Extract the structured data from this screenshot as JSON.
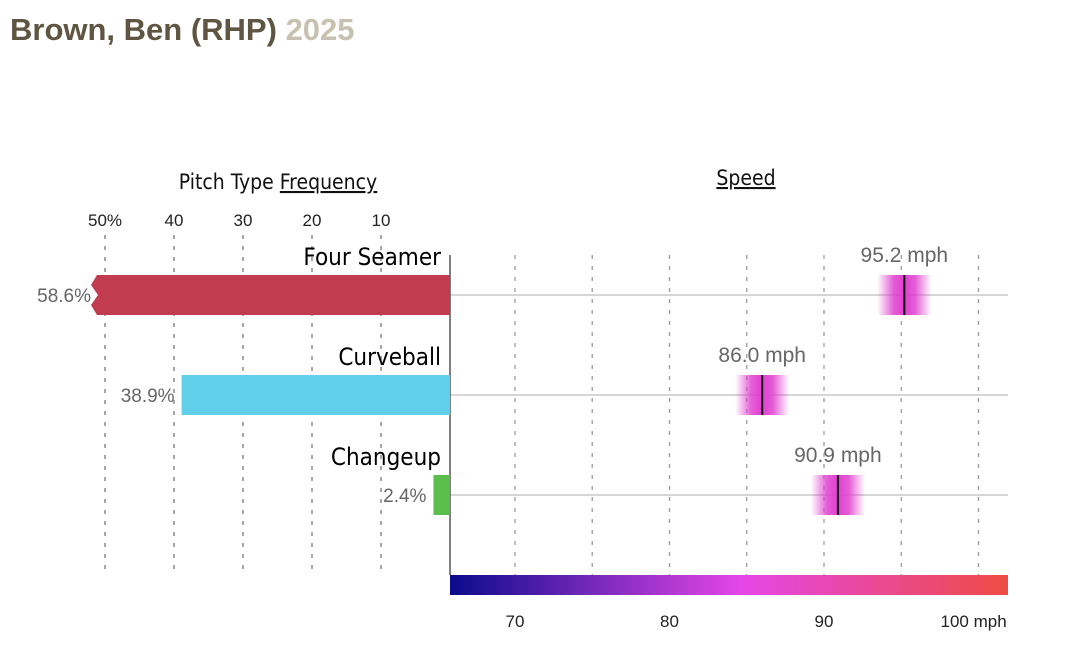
{
  "header": {
    "name": "Brown, Ben (RHP)",
    "year": "2025"
  },
  "chart_data": {
    "type": "bar",
    "titles": {
      "frequency_prefix": "Pitch Type ",
      "frequency_underlined": "Frequency",
      "speed": "Speed"
    },
    "frequency_axis": {
      "ticks": [
        50,
        40,
        30,
        20,
        10
      ],
      "tick_labels": [
        "50%",
        "40",
        "30",
        "20",
        "10"
      ]
    },
    "speed_axis": {
      "ticks": [
        70,
        80,
        90,
        100
      ],
      "tick_labels": [
        "70",
        "80",
        "90",
        "100 mph"
      ],
      "range": [
        65,
        101
      ]
    },
    "pitches": [
      {
        "name": "Four Seamer",
        "frequency": 58.6,
        "frequency_label": "58.6%",
        "speed": 95.2,
        "speed_label": "95.2 mph",
        "color": "#c13c4e"
      },
      {
        "name": "Curveball",
        "frequency": 38.9,
        "frequency_label": "38.9%",
        "speed": 86.0,
        "speed_label": "86.0 mph",
        "color": "#5fcfea"
      },
      {
        "name": "Changeup",
        "frequency": 2.4,
        "frequency_label": "2.4%",
        "speed": 90.9,
        "speed_label": "90.9 mph",
        "color": "#5bbd4c"
      }
    ],
    "colors": {
      "speed_gradient": [
        "#0b0b8c",
        "#e546e8",
        "#ee4c44"
      ],
      "speed_marker": "#e040d0"
    }
  }
}
